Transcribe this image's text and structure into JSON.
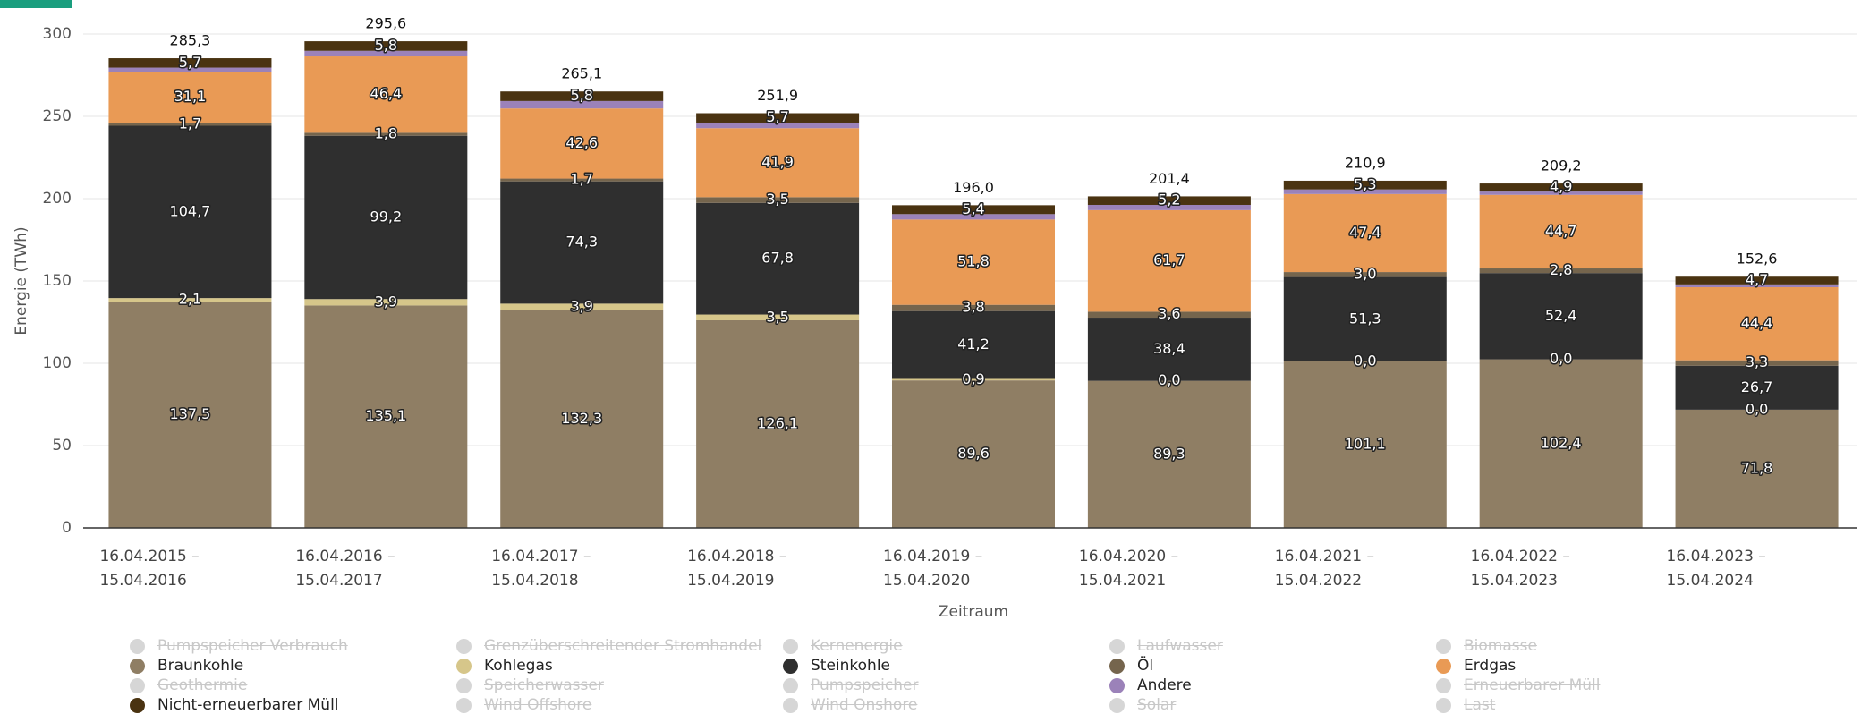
{
  "chart_data": {
    "type": "stacked_bar",
    "y_label": "Energie (TWh)",
    "x_label": "Zeitraum",
    "categories": [
      "16.04.2015 – 15.04.2016",
      "16.04.2016 – 15.04.2017",
      "16.04.2017 – 15.04.2018",
      "16.04.2018 – 15.04.2019",
      "16.04.2019 – 15.04.2020",
      "16.04.2020 – 15.04.2021",
      "16.04.2021 – 15.04.2022",
      "16.04.2022 – 15.04.2023",
      "16.04.2023 – 15.04.2024"
    ],
    "ylim": [
      0,
      300
    ],
    "yticks": [
      0,
      50,
      100,
      150,
      200,
      250,
      300
    ],
    "grid": true,
    "series": [
      {
        "name": "Pumpspeicher Verbrauch",
        "visible": false
      },
      {
        "name": "Grenzüberschreitender Stromhandel",
        "visible": false
      },
      {
        "name": "Kernenergie",
        "visible": false
      },
      {
        "name": "Laufwasser",
        "visible": false
      },
      {
        "name": "Biomasse",
        "visible": false
      },
      {
        "name": "Braunkohle",
        "color": "#8f7e64",
        "values": [
          137.5,
          135.1,
          132.3,
          126.1,
          89.6,
          89.3,
          101.1,
          102.4,
          71.8
        ],
        "value_labels": [
          "137,5",
          "135,1",
          "132,3",
          "126,1",
          "89,6",
          "89,3",
          "101,1",
          "102,4",
          "71,8"
        ]
      },
      {
        "name": "Kohlegas",
        "color": "#d6c68a",
        "values": [
          2.1,
          3.9,
          3.9,
          3.5,
          0.9,
          0.0,
          0.0,
          0.0,
          0.0
        ],
        "value_labels": [
          "2,1",
          "3,9",
          "3,9",
          "3,5",
          "0,9",
          "0,0",
          "0,0",
          "0,0",
          "0,0"
        ]
      },
      {
        "name": "Steinkohle",
        "color": "#2f2f2f",
        "values": [
          104.7,
          99.2,
          74.3,
          67.8,
          41.2,
          38.4,
          51.3,
          52.4,
          26.7
        ],
        "value_labels": [
          "104,7",
          "99,2",
          "74,3",
          "67,8",
          "41,2",
          "38,4",
          "51,3",
          "52,4",
          "26,7"
        ]
      },
      {
        "name": "Öl",
        "color": "#75654d",
        "values": [
          1.7,
          1.8,
          1.7,
          3.5,
          3.8,
          3.6,
          3.0,
          2.8,
          3.3
        ],
        "value_labels": [
          "1,7",
          "1,8",
          "1,7",
          "3,5",
          "3,8",
          "3,6",
          "3,0",
          "2,8",
          "3,3"
        ]
      },
      {
        "name": "Erdgas",
        "color": "#e99a55",
        "values": [
          31.1,
          46.4,
          42.6,
          41.9,
          51.8,
          61.7,
          47.4,
          44.7,
          44.4
        ],
        "value_labels": [
          "31,1",
          "46,4",
          "42,6",
          "41,9",
          "51,8",
          "61,7",
          "47,4",
          "44,7",
          "44,4"
        ]
      },
      {
        "name": "Geothermie",
        "visible": false
      },
      {
        "name": "Speicherwasser",
        "visible": false
      },
      {
        "name": "Pumpspeicher",
        "visible": false
      },
      {
        "name": "Andere",
        "color": "#9b82b9",
        "values": [
          2.5,
          3.4,
          4.5,
          3.4,
          3.3,
          3.2,
          2.8,
          2.0,
          1.7
        ]
      },
      {
        "name": "Erneuerbarer Müll",
        "visible": false
      },
      {
        "name": "Nicht-erneuerbarer Müll",
        "color": "#4a3311",
        "values": [
          5.7,
          5.8,
          5.8,
          5.7,
          5.4,
          5.2,
          5.3,
          4.9,
          4.7
        ],
        "value_labels": [
          "5,7",
          "5,8",
          "5,8",
          "5,7",
          "5,4",
          "5,2",
          "5,3",
          "4,9",
          "4,7"
        ]
      },
      {
        "name": "Wind Offshore",
        "visible": false
      },
      {
        "name": "Wind Onshore",
        "visible": false
      },
      {
        "name": "Solar",
        "visible": false
      },
      {
        "name": "Last",
        "visible": false
      }
    ],
    "totals": {
      "values": [
        285.3,
        295.6,
        265.1,
        251.9,
        196.0,
        201.4,
        210.9,
        209.2,
        152.6
      ],
      "value_labels": [
        "285,3",
        "295,6",
        "265,1",
        "251,9",
        "196,0",
        "201,4",
        "210,9",
        "209,2",
        "152,6"
      ]
    }
  }
}
